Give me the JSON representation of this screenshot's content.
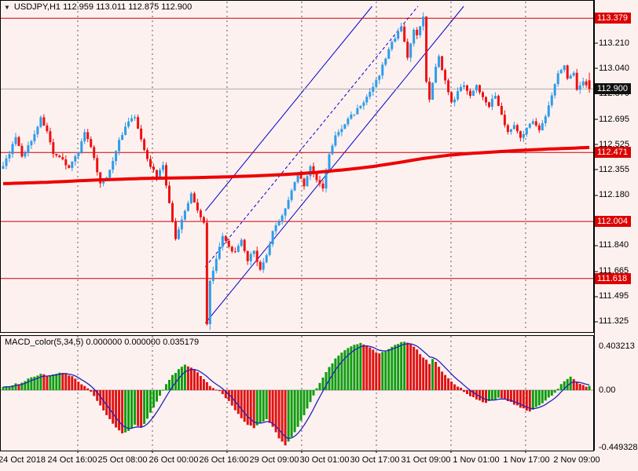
{
  "header": {
    "title": "USDJPY,H1  112.959 113.011 112.875 112.900"
  },
  "icons": {
    "symbol_dropdown": "▼"
  },
  "colors": {
    "background": "#fdf1f0",
    "bull_candle": "#2e9ce8",
    "bear_candle": "#ee1111",
    "ma_line": "#ee0000",
    "level_line": "#cc0000",
    "current_price_line": "#aaaaaa",
    "badge_red": "#dd0000",
    "badge_black": "#111111",
    "channel_line": "#0000cc",
    "macd_up": "#0f9d0f",
    "macd_down": "#e01212",
    "macd_signal": "#2222bb",
    "macd_zero_line": "#999999"
  },
  "chart_data": [
    {
      "type": "candlestick",
      "symbol": "USDJPY",
      "timeframe": "H1",
      "ohlc_display": {
        "open": "112.959",
        "high": "113.011",
        "low": "112.875",
        "close": "112.900"
      },
      "bars_total": 188,
      "x_tick_labels": [
        "24 Oct 2018",
        "24 Oct 16:00",
        "25 Oct 08:00",
        "26 Oct 00:00",
        "26 Oct 16:00",
        "29 Oct 09:00",
        "30 Oct 01:00",
        "30 Oct 17:00",
        "31 Oct 09:00",
        "1 Nov 01:00",
        "1 Nov 17:00",
        "2 Nov 09:00"
      ],
      "ylim": [
        111.27,
        113.44
      ],
      "price_axis_ticks": [
        {
          "label": "113.379",
          "price": 113.379,
          "badge": "red"
        },
        {
          "label": "113.210",
          "price": 113.21,
          "badge": null
        },
        {
          "label": "113.040",
          "price": 113.04,
          "badge": null
        },
        {
          "label": "112.900",
          "price": 112.9,
          "badge": "black"
        },
        {
          "label": "112.870",
          "price": 112.87,
          "badge": null
        },
        {
          "label": "112.695",
          "price": 112.695,
          "badge": null
        },
        {
          "label": "112.525",
          "price": 112.525,
          "badge": null
        },
        {
          "label": "112.471",
          "price": 112.471,
          "badge": "red"
        },
        {
          "label": "112.355",
          "price": 112.355,
          "badge": null
        },
        {
          "label": "112.180",
          "price": 112.18,
          "badge": null
        },
        {
          "label": "112.004",
          "price": 112.004,
          "badge": "red"
        },
        {
          "label": "111.840",
          "price": 111.84,
          "badge": null
        },
        {
          "label": "111.665",
          "price": 111.665,
          "badge": null
        },
        {
          "label": "111.618",
          "price": 111.618,
          "badge": "red"
        },
        {
          "label": "111.495",
          "price": 111.495,
          "badge": null
        },
        {
          "label": "111.325",
          "price": 111.325,
          "badge": null
        }
      ],
      "horizontal_level_lines": [
        113.379,
        112.471,
        112.004,
        111.618
      ],
      "current_price": 112.9,
      "price_path_anchors": [
        [
          0,
          112.36
        ],
        [
          2,
          112.42
        ],
        [
          5,
          112.57
        ],
        [
          7,
          112.44
        ],
        [
          10,
          112.55
        ],
        [
          13,
          112.7
        ],
        [
          15,
          112.62
        ],
        [
          17,
          112.45
        ],
        [
          20,
          112.42
        ],
        [
          22,
          112.37
        ],
        [
          25,
          112.48
        ],
        [
          27,
          112.61
        ],
        [
          29,
          112.5
        ],
        [
          32,
          112.27
        ],
        [
          34,
          112.3
        ],
        [
          36,
          112.42
        ],
        [
          38,
          112.55
        ],
        [
          41,
          112.68
        ],
        [
          43,
          112.71
        ],
        [
          45,
          112.55
        ],
        [
          48,
          112.38
        ],
        [
          50,
          112.31
        ],
        [
          52,
          112.39
        ],
        [
          54,
          112.12
        ],
        [
          56,
          111.89
        ],
        [
          58,
          112.01
        ],
        [
          61,
          112.19
        ],
        [
          63,
          112.08
        ],
        [
          65,
          112.0
        ],
        [
          66,
          111.31
        ],
        [
          67,
          111.6
        ],
        [
          69,
          111.76
        ],
        [
          71,
          111.9
        ],
        [
          73,
          111.83
        ],
        [
          75,
          111.79
        ],
        [
          77,
          111.87
        ],
        [
          79,
          111.74
        ],
        [
          81,
          111.81
        ],
        [
          83,
          111.67
        ],
        [
          85,
          111.77
        ],
        [
          87,
          111.93
        ],
        [
          89,
          112.01
        ],
        [
          91,
          112.09
        ],
        [
          93,
          112.21
        ],
        [
          95,
          112.33
        ],
        [
          97,
          112.25
        ],
        [
          99,
          112.37
        ],
        [
          101,
          112.28
        ],
        [
          103,
          112.23
        ],
        [
          105,
          112.46
        ],
        [
          107,
          112.58
        ],
        [
          109,
          112.63
        ],
        [
          111,
          112.7
        ],
        [
          113,
          112.74
        ],
        [
          115,
          112.79
        ],
        [
          117,
          112.84
        ],
        [
          119,
          112.91
        ],
        [
          121,
          113.0
        ],
        [
          123,
          113.11
        ],
        [
          125,
          113.22
        ],
        [
          127,
          113.28
        ],
        [
          128,
          113.33
        ],
        [
          130,
          113.12
        ],
        [
          132,
          113.29
        ],
        [
          133,
          113.26
        ],
        [
          135,
          113.38
        ],
        [
          136,
          112.95
        ],
        [
          137,
          112.82
        ],
        [
          139,
          113.06
        ],
        [
          140,
          113.12
        ],
        [
          142,
          112.95
        ],
        [
          144,
          112.8
        ],
        [
          146,
          112.88
        ],
        [
          148,
          112.93
        ],
        [
          150,
          112.86
        ],
        [
          152,
          112.92
        ],
        [
          154,
          112.85
        ],
        [
          156,
          112.79
        ],
        [
          158,
          112.86
        ],
        [
          160,
          112.72
        ],
        [
          162,
          112.61
        ],
        [
          164,
          112.65
        ],
        [
          166,
          112.58
        ],
        [
          168,
          112.63
        ],
        [
          170,
          112.69
        ],
        [
          172,
          112.63
        ],
        [
          174,
          112.71
        ],
        [
          176,
          112.86
        ],
        [
          178,
          113.0
        ],
        [
          180,
          113.06
        ],
        [
          181,
          112.98
        ],
        [
          183,
          113.02
        ],
        [
          184,
          112.89
        ],
        [
          186,
          112.96
        ],
        [
          187,
          112.93
        ]
      ],
      "ma_line_anchors": [
        [
          0,
          112.26
        ],
        [
          15,
          112.27
        ],
        [
          30,
          112.285
        ],
        [
          45,
          112.295
        ],
        [
          60,
          112.3
        ],
        [
          70,
          112.305
        ],
        [
          80,
          112.312
        ],
        [
          90,
          112.322
        ],
        [
          100,
          112.336
        ],
        [
          110,
          112.356
        ],
        [
          118,
          112.376
        ],
        [
          126,
          112.402
        ],
        [
          134,
          112.43
        ],
        [
          142,
          112.452
        ],
        [
          150,
          112.466
        ],
        [
          158,
          112.476
        ],
        [
          166,
          112.486
        ],
        [
          174,
          112.494
        ],
        [
          182,
          112.5
        ],
        [
          187,
          112.505
        ]
      ],
      "channel": {
        "start_bar": 65,
        "upper_start": 112.09,
        "middle_start": 111.71,
        "lower_start": 111.33,
        "slope_per_bar": 0.026
      },
      "last_bar": {
        "open": 112.959,
        "high": 113.011,
        "low": 112.875,
        "close": 112.9
      },
      "wick_overrides": {
        "65": {
          "low": 111.3
        },
        "66": {
          "low": 111.27
        },
        "135": {
          "high": 113.395
        }
      }
    },
    {
      "type": "bar",
      "name": "MACD",
      "label": "MACD_color(5,34,5)",
      "values_display": "0.000000 0.000000 0.035179",
      "scale_labels": {
        "max": "0.403213",
        "zero": "0.00",
        "min": "-0.449328"
      },
      "ylim": [
        -0.449328,
        0.403213
      ],
      "value_anchors": [
        [
          0,
          0.02
        ],
        [
          2,
          0.035
        ],
        [
          4,
          0.05
        ],
        [
          6,
          0.06
        ],
        [
          8,
          0.09
        ],
        [
          10,
          0.115
        ],
        [
          12,
          0.13
        ],
        [
          14,
          0.12
        ],
        [
          16,
          0.125
        ],
        [
          18,
          0.145
        ],
        [
          20,
          0.14
        ],
        [
          22,
          0.11
        ],
        [
          24,
          0.07
        ],
        [
          26,
          0.03
        ],
        [
          28,
          -0.01
        ],
        [
          30,
          -0.09
        ],
        [
          32,
          -0.17
        ],
        [
          34,
          -0.24
        ],
        [
          36,
          -0.31
        ],
        [
          38,
          -0.36
        ],
        [
          40,
          -0.33
        ],
        [
          42,
          -0.29
        ],
        [
          44,
          -0.31
        ],
        [
          46,
          -0.24
        ],
        [
          48,
          -0.14
        ],
        [
          50,
          -0.04
        ],
        [
          52,
          0.05
        ],
        [
          54,
          0.12
        ],
        [
          56,
          0.17
        ],
        [
          58,
          0.21
        ],
        [
          60,
          0.19
        ],
        [
          62,
          0.15
        ],
        [
          64,
          0.09
        ],
        [
          66,
          0.04
        ],
        [
          68,
          0.005
        ],
        [
          70,
          -0.03
        ],
        [
          72,
          -0.09
        ],
        [
          74,
          -0.16
        ],
        [
          76,
          -0.23
        ],
        [
          78,
          -0.28
        ],
        [
          80,
          -0.31
        ],
        [
          82,
          -0.275
        ],
        [
          84,
          -0.24
        ],
        [
          86,
          -0.3
        ],
        [
          88,
          -0.4
        ],
        [
          90,
          -0.45
        ],
        [
          92,
          -0.39
        ],
        [
          94,
          -0.3
        ],
        [
          96,
          -0.2
        ],
        [
          98,
          -0.1
        ],
        [
          100,
          0.01
        ],
        [
          102,
          0.1
        ],
        [
          104,
          0.19
        ],
        [
          106,
          0.26
        ],
        [
          108,
          0.31
        ],
        [
          110,
          0.35
        ],
        [
          112,
          0.375
        ],
        [
          114,
          0.39
        ],
        [
          116,
          0.365
        ],
        [
          118,
          0.33
        ],
        [
          120,
          0.3
        ],
        [
          122,
          0.32
        ],
        [
          124,
          0.36
        ],
        [
          126,
          0.385
        ],
        [
          128,
          0.4
        ],
        [
          130,
          0.375
        ],
        [
          132,
          0.33
        ],
        [
          134,
          0.27
        ],
        [
          135,
          0.25
        ],
        [
          136,
          0.22
        ],
        [
          137,
          0.25
        ],
        [
          138,
          0.23
        ],
        [
          140,
          0.15
        ],
        [
          142,
          0.1
        ],
        [
          144,
          0.05
        ],
        [
          146,
          0.015
        ],
        [
          147,
          -0.01
        ],
        [
          148,
          -0.03
        ],
        [
          150,
          -0.06
        ],
        [
          152,
          -0.09
        ],
        [
          154,
          -0.105
        ],
        [
          156,
          -0.085
        ],
        [
          158,
          -0.065
        ],
        [
          160,
          -0.075
        ],
        [
          162,
          -0.1
        ],
        [
          164,
          -0.13
        ],
        [
          166,
          -0.155
        ],
        [
          168,
          -0.17
        ],
        [
          170,
          -0.145
        ],
        [
          172,
          -0.11
        ],
        [
          174,
          -0.06
        ],
        [
          176,
          -0.02
        ],
        [
          177,
          0.01
        ],
        [
          178,
          0.05
        ],
        [
          180,
          0.095
        ],
        [
          181,
          0.11
        ],
        [
          182,
          0.09
        ],
        [
          183,
          0.065
        ],
        [
          184,
          0.05
        ],
        [
          185,
          0.04
        ],
        [
          186,
          0.032
        ],
        [
          187,
          0.035179
        ]
      ],
      "last_value": 0.035179
    }
  ]
}
